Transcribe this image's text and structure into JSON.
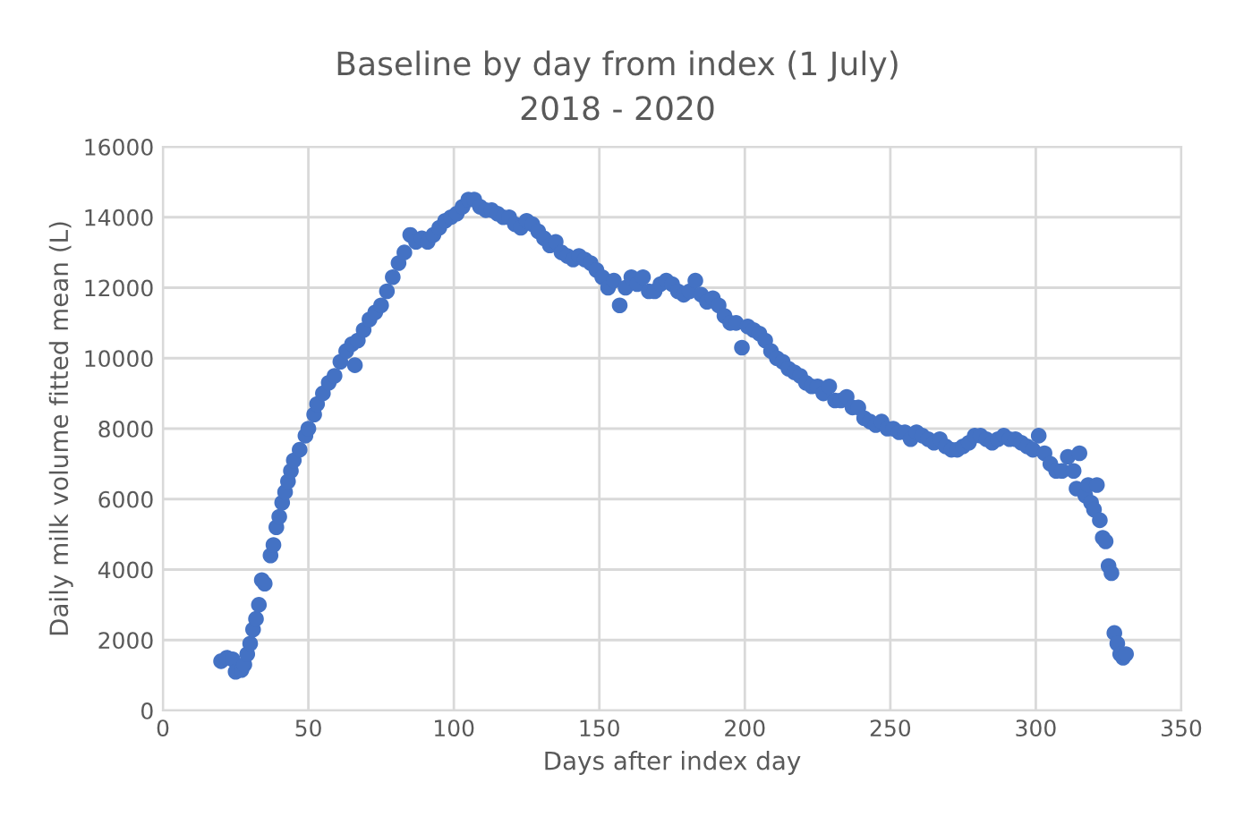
{
  "chart_data": {
    "type": "scatter",
    "title": "Baseline by day from index (1 July)",
    "subtitle": "2018 - 2020",
    "xlabel": "Days after index day",
    "ylabel": "Daily milk volume fitted mean (L)",
    "xlim": [
      0,
      350
    ],
    "xticks": [
      0,
      50,
      100,
      150,
      200,
      250,
      300,
      350
    ],
    "ylim": [
      0,
      16000
    ],
    "yticks": [
      0,
      2000,
      4000,
      6000,
      8000,
      10000,
      12000,
      14000,
      16000
    ],
    "grid": true,
    "marker": "circle",
    "legend": false,
    "series": [
      {
        "color": "#4472c4",
        "x": [
          20,
          22,
          24,
          25,
          27,
          28,
          29,
          30,
          31,
          32,
          33,
          34,
          35,
          37,
          38,
          39,
          40,
          41,
          42,
          43,
          44,
          45,
          47,
          49,
          50,
          52,
          53,
          55,
          57,
          59,
          61,
          63,
          65,
          66,
          67,
          69,
          71,
          73,
          75,
          77,
          79,
          81,
          83,
          85,
          87,
          89,
          91,
          93,
          95,
          97,
          99,
          101,
          103,
          105,
          107,
          109,
          111,
          113,
          115,
          117,
          119,
          121,
          123,
          125,
          127,
          129,
          131,
          133,
          135,
          137,
          139,
          141,
          143,
          145,
          147,
          149,
          151,
          153,
          155,
          157,
          159,
          161,
          163,
          165,
          167,
          169,
          171,
          173,
          175,
          177,
          179,
          181,
          183,
          185,
          187,
          189,
          191,
          193,
          195,
          197,
          199,
          201,
          203,
          205,
          207,
          209,
          211,
          213,
          215,
          217,
          219,
          221,
          223,
          225,
          227,
          229,
          231,
          233,
          235,
          237,
          239,
          241,
          243,
          245,
          247,
          249,
          251,
          253,
          255,
          257,
          259,
          261,
          263,
          265,
          267,
          269,
          271,
          273,
          275,
          277,
          279,
          281,
          283,
          285,
          287,
          289,
          291,
          293,
          295,
          297,
          299,
          301,
          303,
          305,
          307,
          309,
          311,
          313,
          314,
          315,
          317,
          318,
          319,
          320,
          321,
          322,
          323,
          324,
          325,
          326,
          327,
          328,
          329,
          330,
          331
        ],
        "values": [
          1400,
          1500,
          1450,
          1100,
          1150,
          1300,
          1600,
          1900,
          2300,
          2600,
          3000,
          3700,
          3600,
          4400,
          4700,
          5200,
          5500,
          5900,
          6200,
          6500,
          6800,
          7100,
          7400,
          7800,
          8000,
          8400,
          8700,
          9000,
          9300,
          9500,
          9900,
          10200,
          10400,
          9800,
          10500,
          10800,
          11100,
          11300,
          11500,
          11900,
          12300,
          12700,
          13000,
          13500,
          13300,
          13400,
          13300,
          13500,
          13700,
          13900,
          14000,
          14100,
          14300,
          14500,
          14500,
          14300,
          14200,
          14200,
          14100,
          14000,
          14000,
          13800,
          13700,
          13900,
          13800,
          13600,
          13400,
          13200,
          13300,
          13000,
          12900,
          12800,
          12900,
          12800,
          12700,
          12500,
          12300,
          12000,
          12200,
          11500,
          12000,
          12300,
          12100,
          12300,
          11900,
          11900,
          12100,
          12200,
          12100,
          11900,
          11800,
          11900,
          12200,
          11800,
          11600,
          11700,
          11500,
          11200,
          11000,
          11000,
          10300,
          10900,
          10800,
          10700,
          10500,
          10200,
          10000,
          9900,
          9700,
          9600,
          9500,
          9300,
          9200,
          9200,
          9000,
          9200,
          8800,
          8800,
          8900,
          8600,
          8600,
          8300,
          8200,
          8100,
          8200,
          8000,
          8000,
          7900,
          7900,
          7700,
          7900,
          7800,
          7700,
          7600,
          7700,
          7500,
          7400,
          7400,
          7500,
          7600,
          7800,
          7800,
          7700,
          7600,
          7700,
          7800,
          7700,
          7700,
          7600,
          7500,
          7400,
          7800,
          7300,
          7000,
          6800,
          6800,
          7200,
          6800,
          6300,
          7300,
          6100,
          6400,
          5900,
          5700,
          6400,
          5400,
          4900,
          4800,
          4100,
          3900,
          2200,
          1900,
          1600,
          1500,
          1600
        ]
      }
    ]
  }
}
